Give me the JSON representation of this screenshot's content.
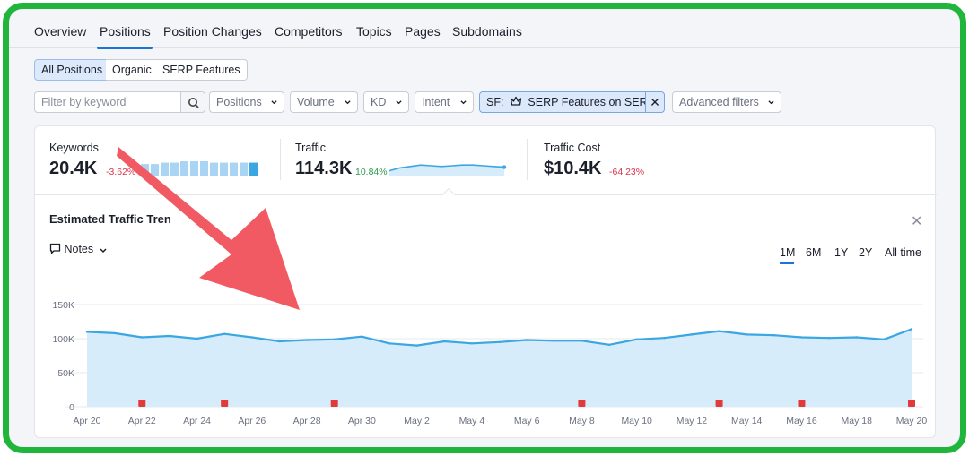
{
  "tabs": [
    "Overview",
    "Positions",
    "Position Changes",
    "Competitors",
    "Topics",
    "Pages",
    "Subdomains"
  ],
  "active_tab": "Positions",
  "segments": [
    "All Positions",
    "Organic",
    "SERP Features"
  ],
  "active_segment": "All Positions",
  "filters": {
    "keyword_placeholder": "Filter by keyword",
    "dropdowns": [
      "Positions",
      "Volume",
      "KD",
      "Intent"
    ],
    "sf_prefix": "SF:",
    "sf_value": "SERP Features on SERP",
    "advanced": "Advanced filters"
  },
  "metrics": {
    "keywords": {
      "label": "Keywords",
      "value": "20.4K",
      "delta": "-3.62%"
    },
    "traffic": {
      "label": "Traffic",
      "value": "114.3K",
      "delta": "10.84%"
    },
    "traffic_cost": {
      "label": "Traffic Cost",
      "value": "$10.4K",
      "delta": "-64.23%"
    }
  },
  "trend": {
    "title": "Estimated Traffic Tren",
    "notes_label": "Notes",
    "ranges": [
      "1M",
      "6M",
      "1Y",
      "2Y",
      "All time"
    ],
    "active_range": "1M"
  },
  "colors": {
    "accent": "#1e74d6",
    "line": "#3aa6e2",
    "area": "#d6ecfa",
    "marker": "#e23a3a",
    "arrow": "#f15a62",
    "frame": "#22b53b"
  },
  "icons": [
    "search-icon",
    "chevron-down-icon",
    "crown-icon",
    "close-icon",
    "comment-icon"
  ],
  "keywords_sparkline": [
    9,
    9,
    10,
    10,
    11,
    11,
    11,
    10,
    10,
    10,
    10,
    10
  ],
  "traffic_sparkline": [
    88,
    92,
    94,
    96,
    95,
    94,
    95,
    96,
    96,
    95,
    94,
    93
  ],
  "chart_data": {
    "type": "area",
    "x": [
      "Apr 20",
      "Apr 21",
      "Apr 22",
      "Apr 23",
      "Apr 24",
      "Apr 25",
      "Apr 26",
      "Apr 27",
      "Apr 28",
      "Apr 29",
      "Apr 30",
      "May 1",
      "May 2",
      "May 3",
      "May 4",
      "May 5",
      "May 6",
      "May 7",
      "May 8",
      "May 9",
      "May 10",
      "May 11",
      "May 12",
      "May 13",
      "May 14",
      "May 15",
      "May 16",
      "May 17",
      "May 18",
      "May 19",
      "May 20"
    ],
    "xtick_labels": [
      "Apr 20",
      "Apr 22",
      "Apr 24",
      "Apr 26",
      "Apr 28",
      "Apr 30",
      "May 2",
      "May 4",
      "May 6",
      "May 8",
      "May 10",
      "May 12",
      "May 14",
      "May 16",
      "May 18",
      "May 20"
    ],
    "values": [
      110000,
      108000,
      102000,
      104000,
      100000,
      107000,
      102000,
      96000,
      98000,
      99000,
      103000,
      93000,
      90000,
      96000,
      93000,
      95000,
      98000,
      97000,
      97000,
      91000,
      99000,
      101000,
      106000,
      111000,
      106000,
      105000,
      102000,
      101000,
      102000,
      99000,
      114000
    ],
    "yticks": [
      "0",
      "50K",
      "100K",
      "150K"
    ],
    "ylim": [
      0,
      150000
    ],
    "note_markers": [
      "Apr 22",
      "Apr 25",
      "Apr 29",
      "May 8",
      "May 13",
      "May 16",
      "May 20"
    ],
    "grid": true
  }
}
